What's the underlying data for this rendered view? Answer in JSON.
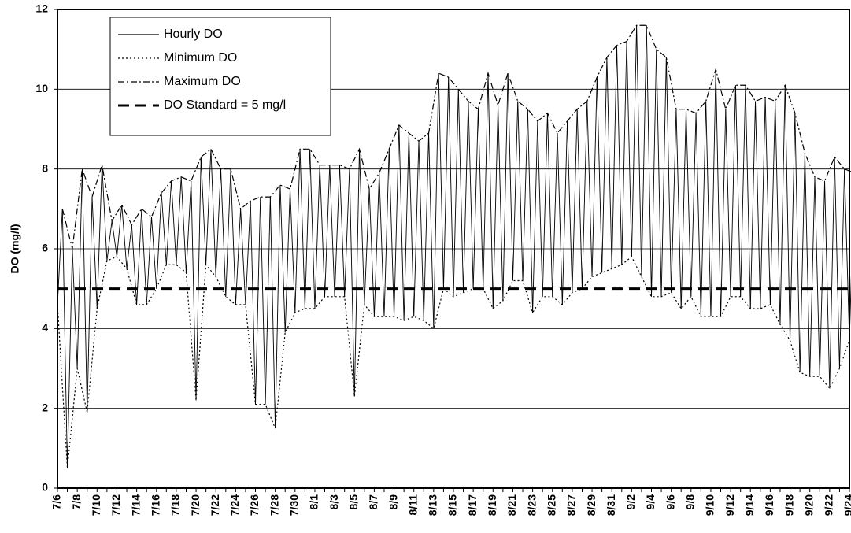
{
  "chart_data": {
    "type": "line",
    "y_label": "DO (mg/l)",
    "categories": [
      "7/6",
      null,
      "7/8",
      null,
      "7/10",
      null,
      "7/12",
      null,
      "7/14",
      null,
      "7/16",
      null,
      "7/18",
      null,
      "7/20",
      null,
      "7/22",
      null,
      "7/24",
      null,
      "7/26",
      null,
      "7/28",
      null,
      "7/30",
      null,
      "8/1",
      null,
      "8/3",
      null,
      "8/5",
      null,
      "8/7",
      null,
      "8/9",
      null,
      "8/11",
      null,
      "8/13",
      null,
      "8/15",
      null,
      "8/17",
      null,
      "8/19",
      null,
      "8/21",
      null,
      "8/23",
      null,
      "8/25",
      null,
      "8/27",
      null,
      "8/29",
      null,
      "8/31",
      null,
      "9/2",
      null,
      "9/4",
      null,
      "9/6",
      null,
      "9/8",
      null,
      "9/10",
      null,
      "9/12",
      null,
      "9/14",
      null,
      "9/16",
      null,
      "9/18",
      null,
      "9/20",
      null,
      "9/22",
      null,
      "9/24"
    ],
    "series": [
      {
        "name": "Hourly DO",
        "color": "#000000",
        "style": "solid"
      },
      {
        "name": "Minimum DO",
        "color": "#000000",
        "style": "dotted",
        "values": [
          4.6,
          0.5,
          3.0,
          1.9,
          4.5,
          5.7,
          5.8,
          5.5,
          4.6,
          4.6,
          5.0,
          5.6,
          5.6,
          5.4,
          2.2,
          5.6,
          5.3,
          4.8,
          4.6,
          4.6,
          2.1,
          2.1,
          1.5,
          3.9,
          4.4,
          4.5,
          4.5,
          4.8,
          4.8,
          4.8,
          2.3,
          4.6,
          4.3,
          4.3,
          4.3,
          4.2,
          4.3,
          4.2,
          4.0,
          5.0,
          4.8,
          4.9,
          5.0,
          5.0,
          4.5,
          4.7,
          5.2,
          5.2,
          4.4,
          4.8,
          4.8,
          4.6,
          4.9,
          5.0,
          5.3,
          5.4,
          5.5,
          5.6,
          5.8,
          5.3,
          4.8,
          4.8,
          4.9,
          4.5,
          4.8,
          4.3,
          4.3,
          4.3,
          4.8,
          4.8,
          4.5,
          4.5,
          4.6,
          4.1,
          3.7,
          2.9,
          2.8,
          2.8,
          2.5,
          3.0,
          3.7
        ]
      },
      {
        "name": "Maximum DO",
        "color": "#000000",
        "style": "dashdot",
        "values": [
          7.0,
          6.0,
          8.0,
          7.3,
          8.1,
          6.7,
          7.1,
          6.6,
          7.0,
          6.8,
          7.4,
          7.7,
          7.8,
          7.7,
          8.3,
          8.5,
          8.0,
          8.0,
          7.0,
          7.2,
          7.3,
          7.3,
          7.6,
          7.5,
          8.5,
          8.5,
          8.1,
          8.1,
          8.1,
          8.0,
          8.5,
          7.5,
          7.9,
          8.5,
          9.1,
          8.9,
          8.7,
          8.9,
          10.4,
          10.3,
          10.0,
          9.7,
          9.5,
          10.4,
          9.6,
          10.4,
          9.7,
          9.5,
          9.2,
          9.4,
          8.9,
          9.2,
          9.5,
          9.7,
          10.3,
          10.8,
          11.1,
          11.2,
          11.6,
          11.6,
          11.0,
          10.8,
          9.5,
          9.5,
          9.4,
          9.7,
          10.5,
          9.5,
          10.1,
          10.1,
          9.7,
          9.8,
          9.7,
          10.1,
          9.4,
          8.4,
          7.8,
          7.7,
          8.3,
          8.0,
          7.9
        ]
      }
    ],
    "reference_line": {
      "name": "DO Standard = 5 mg/l",
      "value": 5,
      "color": "#000000"
    },
    "ylim": [
      0,
      12
    ],
    "yticks": [
      0,
      2,
      4,
      6,
      8,
      10,
      12
    ],
    "grid": true,
    "legend": "upper left"
  }
}
